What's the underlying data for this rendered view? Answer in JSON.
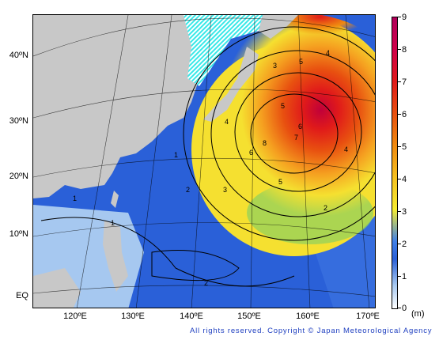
{
  "map": {
    "lat_labels": [
      "40ºN",
      "30ºN",
      "20ºN",
      "10ºN",
      "EQ"
    ],
    "lon_labels": [
      "120ºE",
      "130ºE",
      "140ºE",
      "150ºE",
      "160ºE",
      "170ºE"
    ],
    "contour_labels": [
      "1",
      "1",
      "1",
      "2",
      "2",
      "2",
      "3",
      "3",
      "4",
      "4",
      "4",
      "5",
      "5",
      "5",
      "6",
      "6",
      "7",
      "8"
    ]
  },
  "colorbar": {
    "labels": [
      "9",
      "8",
      "7",
      "6",
      "5",
      "4",
      "3",
      "2",
      "1",
      "0"
    ],
    "unit": "(m)",
    "colors": {
      "high": "#b0005a",
      "mid": "#f08a10",
      "low": "#2a60d8",
      "zero": "#ffffff"
    }
  },
  "footer": {
    "copyright": "All rights reserved. Copyright © Japan Meteorological Agency"
  },
  "colors": {
    "land": "#c8c8c8",
    "ocean_low": "#2a60d8",
    "ocean_high": "#e01a1a",
    "ice": "#38e8e8"
  }
}
